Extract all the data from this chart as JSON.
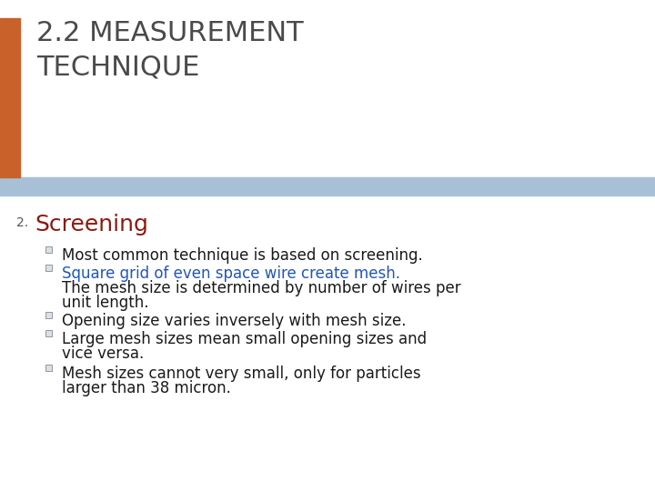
{
  "title_line1": "2.2 MEASUREMENT",
  "title_line2": "TECHNIQUE",
  "title_color": "#4a4a4a",
  "header_bar_color": "#a8c0d6",
  "orange_bar_color": "#c8622a",
  "background_color": "#ffffff",
  "item_number": "2.",
  "item_number_color": "#555555",
  "section_title": "Screening",
  "section_title_color": "#8b1a10",
  "bullet_color_sq_edge": "#888888",
  "bullet_color_sq_face": "#d8e0ea",
  "title_fontsize": 22,
  "section_fontsize": 15,
  "bullet_fontsize": 12,
  "number_fontsize": 10,
  "lh": 16
}
